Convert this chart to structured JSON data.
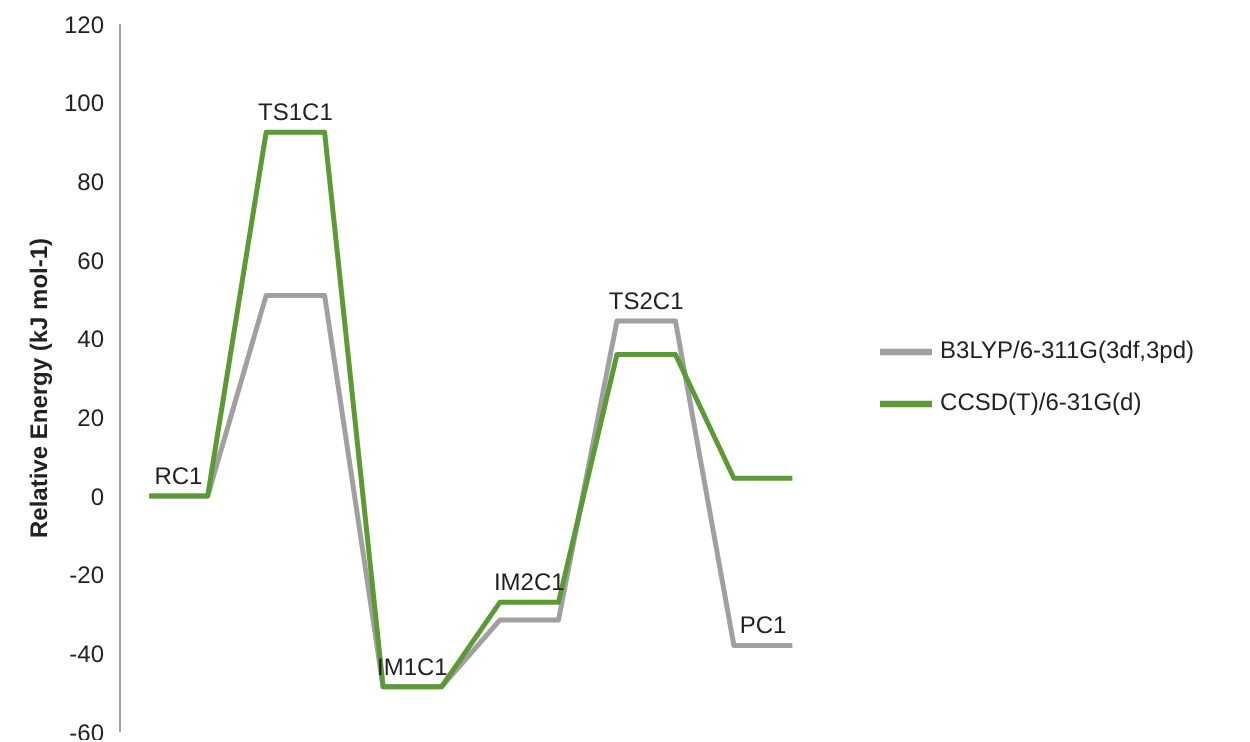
{
  "chart_data": {
    "type": "line",
    "ylabel": "Relative Energy (kJ mol-1)",
    "categories": [
      null,
      null,
      null,
      null,
      null,
      null,
      null,
      null,
      null,
      null,
      null,
      null
    ],
    "series": [
      {
        "name": "B3LYP/6-311G(3df,3pd)",
        "color": "#a0a0a0",
        "values": [
          0,
          0,
          51,
          51,
          -48.5,
          -48.5,
          -31.5,
          -31.5,
          44.5,
          44.5,
          -38,
          -38
        ]
      },
      {
        "name": "CCSD(T)/6-31G(d)",
        "color": "#5b9a35",
        "values": [
          0,
          0,
          92.5,
          92.5,
          -48.5,
          -48.5,
          -27,
          -27,
          36,
          36,
          4.5,
          4.5
        ]
      }
    ],
    "ylim": [
      -60,
      120
    ],
    "yticks": [
      -60,
      -40,
      -20,
      0,
      20,
      40,
      60,
      80,
      100,
      120
    ],
    "annotations": [
      {
        "text": "RC1",
        "y": 0
      },
      {
        "text": "TS1C1",
        "y": 92.5
      },
      {
        "text": "IM1C1",
        "y": -48.5
      },
      {
        "text": "IM2C1",
        "y": -27
      },
      {
        "text": "TS2C1",
        "y": 44.5
      },
      {
        "text": "PC1",
        "y": -38
      }
    ],
    "grid": false,
    "legend": "right",
    "marker": "none",
    "line_style": "solid"
  }
}
